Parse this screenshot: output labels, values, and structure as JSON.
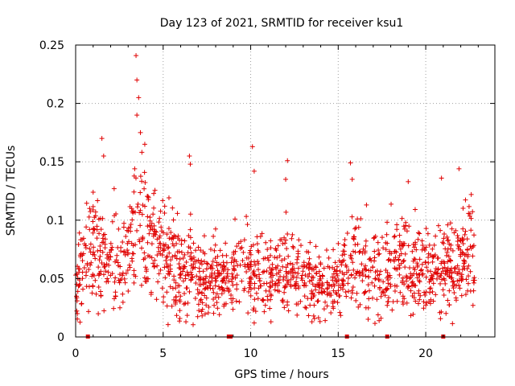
{
  "chart_data": {
    "type": "scatter",
    "title": "Day 123 of 2021, SRMTID for receiver ksu1",
    "xlabel": "GPS time / hours",
    "ylabel": "SRMTID / TECUs",
    "xlim": [
      0,
      23.95
    ],
    "ylim": [
      0,
      0.25
    ],
    "xticks": [
      0,
      5,
      10,
      15,
      20
    ],
    "xtick_labels": [
      "0",
      "5",
      "10",
      "15",
      "20"
    ],
    "yticks": [
      0,
      0.05,
      0.1,
      0.15,
      0.2,
      0.25
    ],
    "ytick_labels": [
      "0",
      "0.05",
      "0.1",
      "0.15",
      "0.2",
      "0.25"
    ],
    "grid": true,
    "marker": "plus",
    "color": "#e00000",
    "series_envelope": {
      "name": "SRMTID (ksu1)",
      "x": [
        0,
        0.5,
        1,
        1.5,
        2,
        2.5,
        3,
        3.5,
        4,
        4.5,
        5,
        5.5,
        6,
        6.5,
        7,
        7.5,
        8,
        8.5,
        9,
        9.5,
        10,
        10.5,
        11,
        11.5,
        12,
        12.5,
        13,
        13.5,
        14,
        14.5,
        15,
        15.5,
        16,
        16.5,
        17,
        17.5,
        18,
        18.5,
        19,
        19.5,
        20,
        20.5,
        21,
        21.5,
        22,
        22.5,
        22.8
      ],
      "center": [
        0.045,
        0.06,
        0.075,
        0.07,
        0.06,
        0.065,
        0.075,
        0.09,
        0.085,
        0.075,
        0.07,
        0.065,
        0.06,
        0.055,
        0.05,
        0.05,
        0.05,
        0.052,
        0.055,
        0.06,
        0.055,
        0.05,
        0.052,
        0.055,
        0.06,
        0.055,
        0.05,
        0.048,
        0.045,
        0.045,
        0.045,
        0.06,
        0.065,
        0.06,
        0.06,
        0.055,
        0.065,
        0.065,
        0.065,
        0.06,
        0.06,
        0.058,
        0.06,
        0.062,
        0.065,
        0.07,
        0.07
      ],
      "upper_outliers": [
        {
          "x": 0.8,
          "y": 0.11
        },
        {
          "x": 1.0,
          "y": 0.124
        },
        {
          "x": 1.5,
          "y": 0.17
        },
        {
          "x": 1.6,
          "y": 0.155
        },
        {
          "x": 2.2,
          "y": 0.127
        },
        {
          "x": 3.2,
          "y": 0.11
        },
        {
          "x": 3.45,
          "y": 0.241
        },
        {
          "x": 3.5,
          "y": 0.22
        },
        {
          "x": 3.6,
          "y": 0.205
        },
        {
          "x": 3.5,
          "y": 0.19
        },
        {
          "x": 3.7,
          "y": 0.175
        },
        {
          "x": 3.95,
          "y": 0.165
        },
        {
          "x": 6.5,
          "y": 0.155
        },
        {
          "x": 6.55,
          "y": 0.148
        },
        {
          "x": 10.1,
          "y": 0.163
        },
        {
          "x": 10.2,
          "y": 0.142
        },
        {
          "x": 12.1,
          "y": 0.151
        },
        {
          "x": 12.0,
          "y": 0.135
        },
        {
          "x": 15.7,
          "y": 0.149
        },
        {
          "x": 15.8,
          "y": 0.135
        },
        {
          "x": 19.0,
          "y": 0.133
        },
        {
          "x": 20.9,
          "y": 0.136
        },
        {
          "x": 21.9,
          "y": 0.144
        },
        {
          "x": 22.6,
          "y": 0.122
        }
      ],
      "lower_outliers": [
        {
          "x": 0.1,
          "y": 0.02
        },
        {
          "x": 6.3,
          "y": 0.013
        },
        {
          "x": 10.2,
          "y": 0.012
        },
        {
          "x": 13.5,
          "y": 0.013
        },
        {
          "x": 13.6,
          "y": 0.018
        },
        {
          "x": 14.2,
          "y": 0.024
        },
        {
          "x": 14.7,
          "y": 0.026
        },
        {
          "x": 17.8,
          "y": 0.027
        },
        {
          "x": 22.7,
          "y": 0.027
        }
      ]
    },
    "data_gap_markers_x": [
      0.7,
      8.75,
      8.85,
      15.5,
      17.8,
      21.0
    ]
  }
}
